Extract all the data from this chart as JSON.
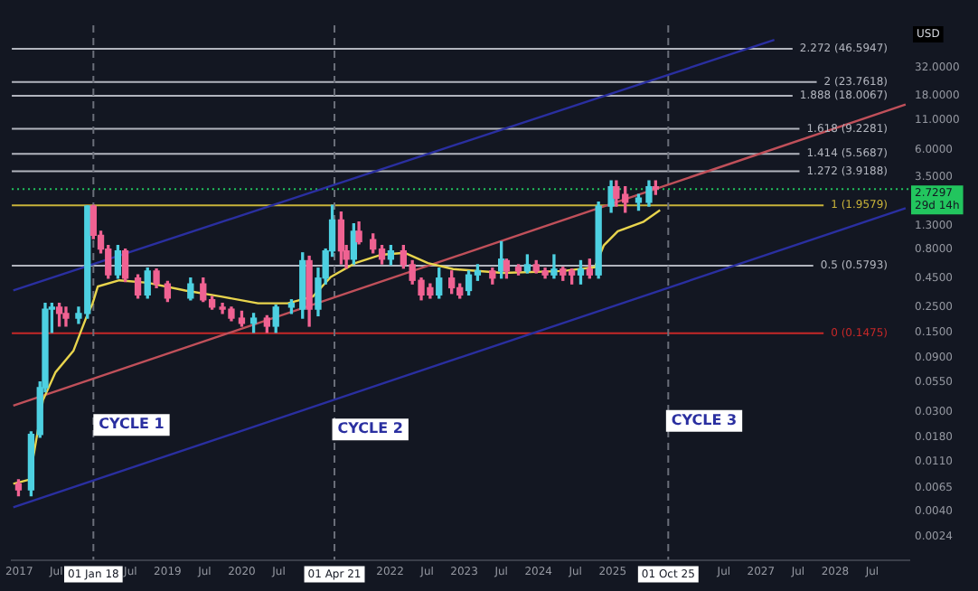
{
  "chart_data": {
    "type": "candlestick",
    "ylabel": "USD",
    "log": "y",
    "grid": false,
    "legend": false,
    "xlim": [
      2016.9,
      2029
    ],
    "ylim": [
      0.0015,
      75
    ],
    "xticks": [
      {
        "value": 2017,
        "label": "2017"
      },
      {
        "value": 2017.5,
        "label": "Jul"
      },
      {
        "value": 2018.5,
        "label": "Jul"
      },
      {
        "value": 2019,
        "label": "2019"
      },
      {
        "value": 2019.5,
        "label": "Jul"
      },
      {
        "value": 2020,
        "label": "2020"
      },
      {
        "value": 2020.5,
        "label": "Jul"
      },
      {
        "value": 2022,
        "label": "2022"
      },
      {
        "value": 2022.5,
        "label": "Jul"
      },
      {
        "value": 2023,
        "label": "2023"
      },
      {
        "value": 2023.5,
        "label": "Jul"
      },
      {
        "value": 2024,
        "label": "2024"
      },
      {
        "value": 2024.5,
        "label": "Jul"
      },
      {
        "value": 2025,
        "label": "2025"
      },
      {
        "value": 2026.5,
        "label": "Jul"
      },
      {
        "value": 2027,
        "label": "2027"
      },
      {
        "value": 2027.5,
        "label": "Jul"
      },
      {
        "value": 2028,
        "label": "2028"
      },
      {
        "value": 2028.5,
        "label": "Jul"
      }
    ],
    "yticks": [
      {
        "value": 32,
        "label": "32.0000"
      },
      {
        "value": 18,
        "label": "18.0000"
      },
      {
        "value": 11,
        "label": "11.0000"
      },
      {
        "value": 6,
        "label": "6.0000"
      },
      {
        "value": 3.5,
        "label": "3.5000"
      },
      {
        "value": 1.3,
        "label": "1.3000"
      },
      {
        "value": 0.8,
        "label": "0.8000"
      },
      {
        "value": 0.45,
        "label": "0.4500"
      },
      {
        "value": 0.25,
        "label": "0.2500"
      },
      {
        "value": 0.15,
        "label": "0.1500"
      },
      {
        "value": 0.09,
        "label": "0.0900"
      },
      {
        "value": 0.055,
        "label": "0.0550"
      },
      {
        "value": 0.03,
        "label": "0.0300"
      },
      {
        "value": 0.018,
        "label": "0.0180"
      },
      {
        "value": 0.011,
        "label": "0.0110"
      },
      {
        "value": 0.0065,
        "label": "0.0065"
      },
      {
        "value": 0.004,
        "label": "0.0040"
      },
      {
        "value": 0.0024,
        "label": "0.0024"
      }
    ],
    "x": [
      2016.99,
      2017.16,
      2017.28,
      2017.35,
      2017.44,
      2017.54,
      2017.63,
      2017.8,
      2017.92,
      2018.0,
      2018.1,
      2018.2,
      2018.33,
      2018.43,
      2018.6,
      2018.73,
      2018.85,
      2019.0,
      2019.31,
      2019.48,
      2019.6,
      2019.74,
      2019.86,
      2020.0,
      2020.16,
      2020.34,
      2020.46,
      2020.67,
      2020.82,
      2020.91,
      2021.03,
      2021.13,
      2021.22,
      2021.34,
      2021.41,
      2021.51,
      2021.58,
      2021.77,
      2021.89,
      2022.01,
      2022.18,
      2022.3,
      2022.42,
      2022.54,
      2022.66,
      2022.83,
      2022.94,
      2023.06,
      2023.18,
      2023.38,
      2023.5,
      2023.57,
      2023.73,
      2023.85,
      2023.97,
      2024.09,
      2024.21,
      2024.33,
      2024.45,
      2024.57,
      2024.69,
      2024.81,
      2024.98,
      2025.05,
      2025.17,
      2025.35,
      2025.49,
      2025.58
    ],
    "ohlc": [
      [
        0.007,
        0.0076,
        0.0055,
        0.0062
      ],
      [
        0.0062,
        0.02,
        0.0055,
        0.019
      ],
      [
        0.019,
        0.055,
        0.018,
        0.049
      ],
      [
        0.049,
        0.27,
        0.045,
        0.24
      ],
      [
        0.24,
        0.27,
        0.15,
        0.25
      ],
      [
        0.25,
        0.27,
        0.17,
        0.22
      ],
      [
        0.22,
        0.25,
        0.17,
        0.2
      ],
      [
        0.2,
        0.25,
        0.18,
        0.22
      ],
      [
        0.22,
        1.95,
        0.2,
        1.93
      ],
      [
        1.93,
        1.96,
        1.0,
        1.07
      ],
      [
        1.07,
        1.16,
        0.75,
        0.81
      ],
      [
        0.81,
        0.87,
        0.45,
        0.48
      ],
      [
        0.48,
        0.87,
        0.45,
        0.78
      ],
      [
        0.78,
        0.81,
        0.42,
        0.45
      ],
      [
        0.45,
        0.48,
        0.3,
        0.32
      ],
      [
        0.32,
        0.55,
        0.3,
        0.52
      ],
      [
        0.52,
        0.54,
        0.37,
        0.4
      ],
      [
        0.4,
        0.42,
        0.28,
        0.3
      ],
      [
        0.3,
        0.45,
        0.29,
        0.4
      ],
      [
        0.4,
        0.45,
        0.28,
        0.29
      ],
      [
        0.29,
        0.31,
        0.24,
        0.25
      ],
      [
        0.25,
        0.27,
        0.22,
        0.24
      ],
      [
        0.24,
        0.25,
        0.19,
        0.2
      ],
      [
        0.2,
        0.23,
        0.17,
        0.18
      ],
      [
        0.18,
        0.22,
        0.15,
        0.2
      ],
      [
        0.2,
        0.21,
        0.15,
        0.17
      ],
      [
        0.17,
        0.26,
        0.15,
        0.25
      ],
      [
        0.25,
        0.29,
        0.22,
        0.27
      ],
      [
        0.24,
        0.75,
        0.2,
        0.64
      ],
      [
        0.64,
        0.7,
        0.17,
        0.24
      ],
      [
        0.24,
        0.55,
        0.21,
        0.45
      ],
      [
        0.45,
        0.81,
        0.4,
        0.78
      ],
      [
        0.78,
        1.96,
        0.7,
        1.46
      ],
      [
        1.46,
        1.71,
        0.6,
        0.78
      ],
      [
        0.78,
        0.87,
        0.55,
        0.66
      ],
      [
        0.66,
        1.35,
        0.6,
        1.16
      ],
      [
        1.16,
        1.4,
        0.9,
        0.94
      ],
      [
        0.98,
        1.1,
        0.75,
        0.81
      ],
      [
        0.81,
        0.87,
        0.6,
        0.66
      ],
      [
        0.66,
        0.87,
        0.59,
        0.78
      ],
      [
        0.78,
        0.87,
        0.55,
        0.59
      ],
      [
        0.59,
        0.64,
        0.4,
        0.43
      ],
      [
        0.43,
        0.45,
        0.29,
        0.32
      ],
      [
        0.37,
        0.4,
        0.3,
        0.32
      ],
      [
        0.32,
        0.55,
        0.3,
        0.45
      ],
      [
        0.45,
        0.52,
        0.33,
        0.37
      ],
      [
        0.37,
        0.4,
        0.3,
        0.32
      ],
      [
        0.35,
        0.52,
        0.32,
        0.48
      ],
      [
        0.48,
        0.59,
        0.43,
        0.52
      ],
      [
        0.52,
        0.55,
        0.4,
        0.45
      ],
      [
        0.52,
        0.94,
        0.45,
        0.66
      ],
      [
        0.64,
        0.66,
        0.45,
        0.52
      ],
      [
        0.56,
        0.59,
        0.48,
        0.52
      ],
      [
        0.52,
        0.72,
        0.5,
        0.59
      ],
      [
        0.59,
        0.64,
        0.5,
        0.52
      ],
      [
        0.52,
        0.55,
        0.45,
        0.48
      ],
      [
        0.48,
        0.72,
        0.45,
        0.54
      ],
      [
        0.54,
        0.56,
        0.43,
        0.48
      ],
      [
        0.52,
        0.54,
        0.4,
        0.48
      ],
      [
        0.48,
        0.64,
        0.4,
        0.54
      ],
      [
        0.54,
        0.66,
        0.45,
        0.48
      ],
      [
        0.48,
        2.09,
        0.45,
        1.93
      ],
      [
        1.93,
        3.22,
        1.71,
        2.86
      ],
      [
        2.86,
        3.22,
        1.93,
        2.27
      ],
      [
        2.45,
        2.86,
        1.71,
        2.09
      ],
      [
        2.09,
        2.45,
        1.78,
        2.27
      ],
      [
        2.09,
        3.22,
        1.93,
        2.86
      ],
      [
        2.86,
        3.22,
        2.45,
        2.73
      ]
    ],
    "colors": [
      "#f06292",
      "#4dd0e1",
      "#4dd0e1",
      "#4dd0e1",
      "#4dd0e1",
      "#f06292",
      "#f06292",
      "#4dd0e1",
      "#4dd0e1",
      "#f06292",
      "#f06292",
      "#f06292",
      "#4dd0e1",
      "#f06292",
      "#f06292",
      "#4dd0e1",
      "#f06292",
      "#f06292",
      "#4dd0e1",
      "#f06292",
      "#f06292",
      "#f06292",
      "#f06292",
      "#f06292",
      "#4dd0e1",
      "#f06292",
      "#4dd0e1",
      "#4dd0e1",
      "#4dd0e1",
      "#f06292",
      "#4dd0e1",
      "#4dd0e1",
      "#4dd0e1",
      "#f06292",
      "#f06292",
      "#4dd0e1",
      "#f06292",
      "#f06292",
      "#f06292",
      "#4dd0e1",
      "#f06292",
      "#f06292",
      "#f06292",
      "#f06292",
      "#4dd0e1",
      "#f06292",
      "#f06292",
      "#4dd0e1",
      "#4dd0e1",
      "#f06292",
      "#4dd0e1",
      "#f06292",
      "#f06292",
      "#4dd0e1",
      "#f06292",
      "#f06292",
      "#4dd0e1",
      "#f06292",
      "#f06292",
      "#4dd0e1",
      "#f06292",
      "#4dd0e1",
      "#4dd0e1",
      "#f06292",
      "#f06292",
      "#4dd0e1",
      "#4dd0e1",
      "#f06292"
    ],
    "series": [
      {
        "type": "line",
        "color": "#e8d44d",
        "x": [
          2016.92,
          2017.13,
          2017.2,
          2017.32,
          2017.49,
          2017.73,
          2017.9,
          2017.99,
          2018.06,
          2018.35,
          2018.73,
          2019.24,
          2019.72,
          2020.22,
          2020.62,
          2020.96,
          2021.2,
          2021.53,
          2021.87,
          2022.2,
          2022.51,
          2022.85,
          2023.52,
          2024.33,
          2024.76,
          2024.88,
          2025.07,
          2025.41,
          2025.64
        ],
        "values": [
          0.007,
          0.0076,
          0.0131,
          0.038,
          0.067,
          0.103,
          0.2,
          0.27,
          0.38,
          0.43,
          0.41,
          0.35,
          0.31,
          0.27,
          0.27,
          0.31,
          0.46,
          0.61,
          0.72,
          0.75,
          0.61,
          0.54,
          0.5,
          0.52,
          0.56,
          0.87,
          1.16,
          1.4,
          1.78
        ]
      },
      {
        "type": "line",
        "color": "#2a2fa0",
        "x": [
          2016.92,
          2027.18
        ],
        "values": [
          0.35,
          55.8
        ]
      },
      {
        "type": "line",
        "color": "#2a2fa0",
        "x": [
          2016.92,
          2028.95
        ],
        "values": [
          0.00435,
          1.85
        ]
      },
      {
        "type": "line",
        "color": "#c0505a",
        "x": [
          2016.92,
          2028.95
        ],
        "values": [
          0.034,
          15.1
        ]
      }
    ],
    "ref_lines": [
      {
        "axis": "y",
        "value": 46.5947,
        "label": "2.272 (46.5947)",
        "color": "#b2b5be",
        "line_style": "solid"
      },
      {
        "axis": "y",
        "value": 23.7618,
        "label": "2 (23.7618)",
        "color": "#b2b5be",
        "line_style": "solid"
      },
      {
        "axis": "y",
        "value": 18.0067,
        "label": "1.888 (18.0067)",
        "color": "#b2b5be",
        "line_style": "solid"
      },
      {
        "axis": "y",
        "value": 9.2281,
        "label": "1.618 (9.2281)",
        "color": "#b2b5be",
        "line_style": "solid"
      },
      {
        "axis": "y",
        "value": 5.5687,
        "label": "1.414 (5.5687)",
        "color": "#b2b5be",
        "line_style": "solid"
      },
      {
        "axis": "y",
        "value": 3.9188,
        "label": "1.272 (3.9188)",
        "color": "#b2b5be",
        "line_style": "solid"
      },
      {
        "axis": "y",
        "value": 1.9579,
        "label": "1 (1.9579)",
        "color": "#c9b33a",
        "line_style": "solid"
      },
      {
        "axis": "y",
        "value": 0.5793,
        "label": "0.5 (0.5793)",
        "color": "#b2b5be",
        "line_style": "solid"
      },
      {
        "axis": "y",
        "value": 0.1475,
        "label": "0 (0.1475)",
        "color": "#c62828",
        "line_style": "solid"
      },
      {
        "axis": "y",
        "value": 2.7297,
        "label": "2.7297\n29d 14h",
        "color": "#22c55e",
        "line_style": "dotted"
      },
      {
        "axis": "x",
        "value": 2018.0,
        "label": "01 Jan 18",
        "color": "#6b6f7a",
        "line_style": "dashed"
      },
      {
        "axis": "x",
        "value": 2021.25,
        "label": "01 Apr 21",
        "color": "#6b6f7a",
        "line_style": "dashed"
      },
      {
        "axis": "x",
        "value": 2025.75,
        "label": "01 Oct 25",
        "color": "#6b6f7a",
        "line_style": "dashed"
      }
    ],
    "annotations": [
      {
        "text": "CYCLE 1",
        "x": 2018.0,
        "y": 0.023
      },
      {
        "text": "CYCLE 2",
        "x": 2021.22,
        "y": 0.021
      },
      {
        "text": "CYCLE 3",
        "x": 2025.72,
        "y": 0.025
      }
    ]
  }
}
